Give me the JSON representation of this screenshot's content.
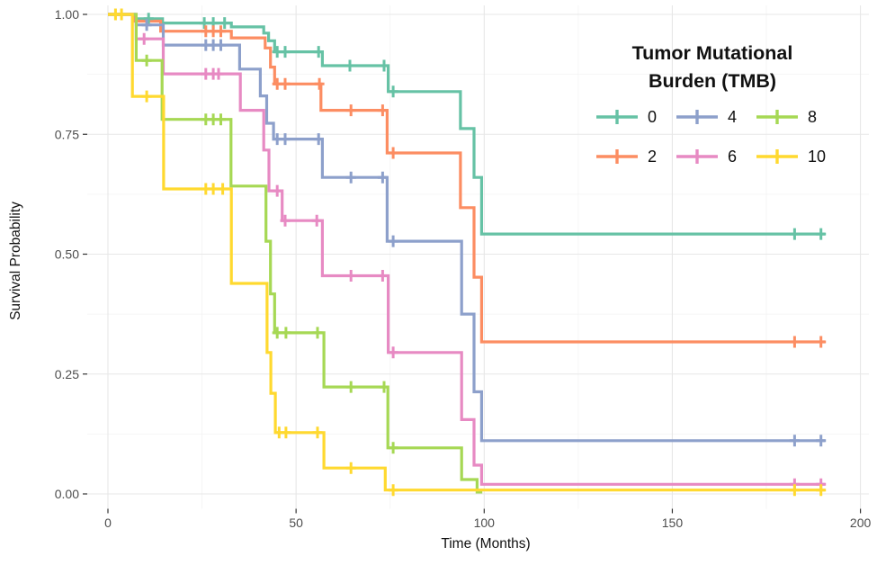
{
  "chart_data": {
    "type": "line",
    "subtype": "kaplan-meier-survival-step",
    "legend_title": "Tumor Mutational Burden (TMB)",
    "legend_title_lines": [
      "Tumor Mutational",
      "Burden (TMB)"
    ],
    "xlabel": "Time (Months)",
    "ylabel": "Survival Probability",
    "xlim": [
      0,
      200
    ],
    "ylim": [
      0,
      1
    ],
    "xticks": [
      0,
      50,
      100,
      150,
      200
    ],
    "xtick_labels": [
      "0",
      "50",
      "100",
      "150",
      "200"
    ],
    "yticks": [
      0,
      0.25,
      0.5,
      0.75,
      1
    ],
    "ytick_labels": [
      "0.00",
      "0.25",
      "0.50",
      "0.75",
      "1.00"
    ],
    "x_minor_ticks": [
      25,
      75,
      125,
      175
    ],
    "y_minor_ticks": [
      0.125,
      0.375,
      0.625,
      0.875
    ],
    "grid": {
      "show_major": true,
      "show_minor": true,
      "major_color": "#e7e7e7",
      "minor_color": "#f3f3f3"
    },
    "axis_text_color": "#4d4d4d",
    "legend_position": "inside-top-right",
    "legend_rows": [
      [
        "0",
        "4",
        "8"
      ],
      [
        "2",
        "6",
        "10"
      ]
    ],
    "series": [
      {
        "name": "0",
        "color": "#66C2A5",
        "steps": [
          [
            0,
            1
          ],
          [
            7,
            0.991
          ],
          [
            14.5,
            0.982
          ],
          [
            32.8,
            0.974
          ],
          [
            41.4,
            0.961
          ],
          [
            42.7,
            0.945
          ],
          [
            44.3,
            0.922
          ],
          [
            57,
            0.893
          ],
          [
            74.5,
            0.839
          ],
          [
            93.7,
            0.762
          ],
          [
            97.3,
            0.66
          ],
          [
            99.3,
            0.542
          ]
        ],
        "end": 190.6,
        "censors": [
          [
            10.8,
            0.991
          ],
          [
            25.6,
            0.982
          ],
          [
            28,
            0.982
          ],
          [
            31,
            0.982
          ],
          [
            45,
            0.922
          ],
          [
            47.1,
            0.922
          ],
          [
            56,
            0.922
          ],
          [
            64.3,
            0.893
          ],
          [
            73.4,
            0.893
          ],
          [
            75.8,
            0.839
          ],
          [
            182.5,
            0.542
          ],
          [
            189.5,
            0.542
          ]
        ]
      },
      {
        "name": "2",
        "color": "#FC8D62",
        "steps": [
          [
            0,
            1
          ],
          [
            7,
            0.986
          ],
          [
            14,
            0.965
          ],
          [
            32.8,
            0.951
          ],
          [
            41.8,
            0.93
          ],
          [
            43.2,
            0.89
          ],
          [
            44.3,
            0.855
          ],
          [
            56.6,
            0.8
          ],
          [
            74.2,
            0.711
          ],
          [
            93.7,
            0.597
          ],
          [
            97.3,
            0.452
          ],
          [
            99.3,
            0.317
          ]
        ],
        "end": 190.6,
        "censors": [
          [
            26,
            0.965
          ],
          [
            28,
            0.965
          ],
          [
            30,
            0.965
          ],
          [
            45,
            0.855
          ],
          [
            47.1,
            0.855
          ],
          [
            56.2,
            0.855
          ],
          [
            64.6,
            0.8
          ],
          [
            73,
            0.8
          ],
          [
            75.8,
            0.711
          ],
          [
            182.5,
            0.317
          ],
          [
            189.5,
            0.317
          ]
        ]
      },
      {
        "name": "4",
        "color": "#8DA0CB",
        "steps": [
          [
            0,
            1
          ],
          [
            7.5,
            0.978
          ],
          [
            14.7,
            0.936
          ],
          [
            35,
            0.886
          ],
          [
            40.5,
            0.83
          ],
          [
            42.2,
            0.773
          ],
          [
            44,
            0.74
          ],
          [
            57,
            0.66
          ],
          [
            74.2,
            0.527
          ],
          [
            94,
            0.375
          ],
          [
            97.3,
            0.213
          ],
          [
            99.3,
            0.111
          ]
        ],
        "end": 190.6,
        "censors": [
          [
            10.3,
            0.978
          ],
          [
            26,
            0.936
          ],
          [
            28,
            0.936
          ],
          [
            30,
            0.936
          ],
          [
            45,
            0.74
          ],
          [
            47.1,
            0.74
          ],
          [
            56,
            0.74
          ],
          [
            64.6,
            0.66
          ],
          [
            73,
            0.66
          ],
          [
            75.8,
            0.527
          ],
          [
            182.5,
            0.111
          ],
          [
            189.5,
            0.111
          ]
        ]
      },
      {
        "name": "6",
        "color": "#E78AC3",
        "steps": [
          [
            0,
            1
          ],
          [
            7.5,
            0.949
          ],
          [
            14.7,
            0.876
          ],
          [
            35.2,
            0.8
          ],
          [
            41.4,
            0.717
          ],
          [
            42.8,
            0.632
          ],
          [
            46.3,
            0.57
          ],
          [
            57,
            0.455
          ],
          [
            74.5,
            0.295
          ],
          [
            94,
            0.155
          ],
          [
            97.3,
            0.06
          ],
          [
            99.3,
            0.02
          ]
        ],
        "end": 190.6,
        "censors": [
          [
            9.6,
            0.949
          ],
          [
            26,
            0.876
          ],
          [
            28,
            0.876
          ],
          [
            29.4,
            0.876
          ],
          [
            45,
            0.632
          ],
          [
            47.1,
            0.57
          ],
          [
            55.5,
            0.57
          ],
          [
            64.6,
            0.455
          ],
          [
            73,
            0.455
          ],
          [
            75.8,
            0.295
          ],
          [
            182.5,
            0.02
          ],
          [
            189.5,
            0.02
          ]
        ]
      },
      {
        "name": "8",
        "color": "#A6D854",
        "steps": [
          [
            0,
            1
          ],
          [
            7.5,
            0.904
          ],
          [
            14.4,
            0.781
          ],
          [
            32.7,
            0.642
          ],
          [
            42,
            0.527
          ],
          [
            43.2,
            0.417
          ],
          [
            44.3,
            0.336
          ],
          [
            57.4,
            0.223
          ],
          [
            74.4,
            0.096
          ],
          [
            94,
            0.03
          ],
          [
            98.1,
            0.004
          ]
        ],
        "end": 99.5,
        "censors": [
          [
            10.3,
            0.904
          ],
          [
            26,
            0.781
          ],
          [
            28,
            0.781
          ],
          [
            30,
            0.781
          ],
          [
            45,
            0.336
          ],
          [
            47.3,
            0.336
          ],
          [
            55.7,
            0.336
          ],
          [
            64.6,
            0.223
          ],
          [
            73.4,
            0.223
          ],
          [
            75.8,
            0.096
          ]
        ]
      },
      {
        "name": "10",
        "color": "#FFD92F",
        "steps": [
          [
            0,
            1
          ],
          [
            6.5,
            0.829
          ],
          [
            14.8,
            0.636
          ],
          [
            32.8,
            0.439
          ],
          [
            42.3,
            0.295
          ],
          [
            43.3,
            0.21
          ],
          [
            44.5,
            0.128
          ],
          [
            57.4,
            0.054
          ],
          [
            73.7,
            0.008
          ]
        ],
        "end": 190.6,
        "censors": [
          [
            2,
            1
          ],
          [
            3.6,
            1
          ],
          [
            10.3,
            0.829
          ],
          [
            26,
            0.636
          ],
          [
            28,
            0.636
          ],
          [
            30.5,
            0.636
          ],
          [
            45.5,
            0.128
          ],
          [
            47.3,
            0.128
          ],
          [
            55.7,
            0.128
          ],
          [
            64.6,
            0.054
          ],
          [
            75.8,
            0.008
          ],
          [
            182.5,
            0.008
          ],
          [
            189.5,
            0.008
          ]
        ]
      }
    ]
  }
}
